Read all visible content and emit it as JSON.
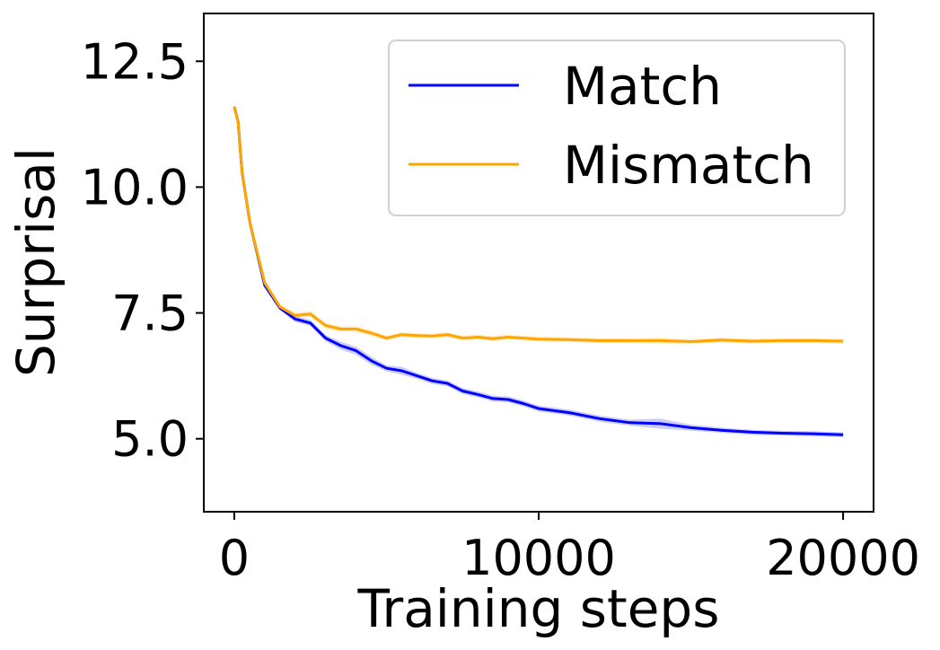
{
  "chart_data": {
    "type": "line",
    "xlabel": "Training steps",
    "ylabel": "Surprisal",
    "xlim": [
      -1000,
      21000
    ],
    "ylim": [
      3.55,
      13.45
    ],
    "xticks": [
      0,
      10000,
      20000
    ],
    "xtick_labels": [
      "0",
      "10000",
      "20000"
    ],
    "yticks": [
      5.0,
      7.5,
      10.0,
      12.5
    ],
    "ytick_labels": [
      "5.0",
      "7.5",
      "10.0",
      "12.5"
    ],
    "legend_position": "upper right",
    "grid": false,
    "x": [
      0,
      128,
      256,
      512,
      1000,
      1500,
      2000,
      2500,
      3000,
      3500,
      4000,
      4500,
      5000,
      5500,
      6000,
      6500,
      7000,
      7500,
      8000,
      8500,
      9000,
      9500,
      10000,
      11000,
      12000,
      13000,
      14000,
      15000,
      16000,
      17000,
      18000,
      19000,
      20000
    ],
    "series": [
      {
        "name": "Match",
        "color": "#0000ff",
        "values": [
          11.6,
          11.3,
          10.3,
          9.3,
          8.05,
          7.6,
          7.38,
          7.3,
          7.0,
          6.85,
          6.75,
          6.55,
          6.4,
          6.35,
          6.25,
          6.15,
          6.1,
          5.95,
          5.88,
          5.8,
          5.78,
          5.7,
          5.6,
          5.52,
          5.4,
          5.32,
          5.3,
          5.22,
          5.17,
          5.13,
          5.11,
          5.1,
          5.08
        ],
        "band": [
          0.04,
          0.04,
          0.04,
          0.04,
          0.04,
          0.04,
          0.06,
          0.06,
          0.06,
          0.08,
          0.08,
          0.08,
          0.06,
          0.08,
          0.06,
          0.06,
          0.06,
          0.06,
          0.06,
          0.06,
          0.06,
          0.06,
          0.06,
          0.06,
          0.06,
          0.06,
          0.1,
          0.06,
          0.05,
          0.05,
          0.05,
          0.05,
          0.05
        ]
      },
      {
        "name": "Mismatch",
        "color": "#ffa500",
        "values": [
          11.6,
          11.3,
          10.3,
          9.3,
          8.1,
          7.62,
          7.45,
          7.48,
          7.25,
          7.18,
          7.18,
          7.1,
          7.0,
          7.07,
          7.05,
          7.04,
          7.07,
          7.0,
          7.02,
          6.99,
          7.02,
          7.0,
          6.98,
          6.97,
          6.95,
          6.95,
          6.95,
          6.93,
          6.96,
          6.94,
          6.95,
          6.95,
          6.94
        ],
        "band": [
          0.04,
          0.04,
          0.04,
          0.04,
          0.04,
          0.05,
          0.06,
          0.06,
          0.06,
          0.06,
          0.06,
          0.06,
          0.05,
          0.05,
          0.05,
          0.05,
          0.05,
          0.05,
          0.05,
          0.05,
          0.05,
          0.05,
          0.05,
          0.05,
          0.05,
          0.05,
          0.06,
          0.05,
          0.05,
          0.05,
          0.05,
          0.05,
          0.05
        ]
      }
    ]
  }
}
